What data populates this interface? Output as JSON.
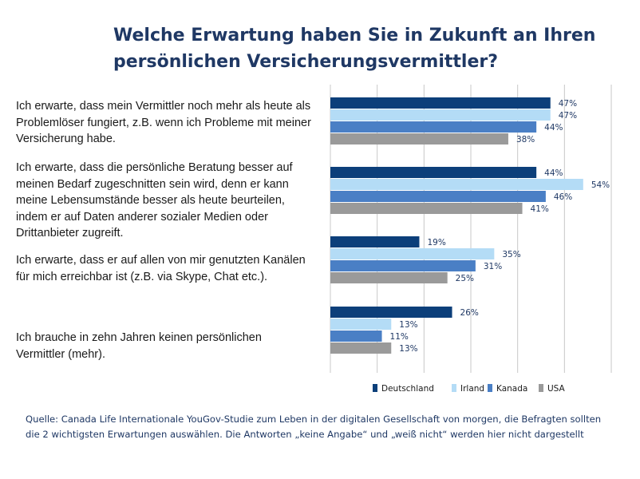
{
  "title_line1": "Welche Erwartung haben Sie in Zukunft an Ihren",
  "title_line2": "persönlichen Versicherungsvermittler?",
  "source": "Quelle: Canada Life Internationale YouGov-Studie zum Leben in der digitalen Gesellschaft von morgen, die Befragten sollten die 2 wichtigsten Erwartungen auswählen. Die Antworten „keine Angabe“ und „weiß nicht“ werden hier nicht dargestellt",
  "colors": {
    "Deutschland": "#0c3f7a",
    "Irland": "#b4dcf6",
    "Kanada": "#4a7fc5",
    "USA": "#9a9a9a",
    "grid": "#c8c8c8",
    "value_text": "#1f3864"
  },
  "chart_data": {
    "type": "bar",
    "orientation": "horizontal",
    "title": "Welche Erwartung haben Sie in Zukunft an Ihren persönlichen Versicherungsvermittler?",
    "value_suffix": "%",
    "xlim": [
      0,
      60
    ],
    "grid": true,
    "legend_position": "bottom",
    "categories": [
      "Ich erwarte, dass mein Vermittler noch mehr als heute als Problemlöser fungiert, z.B. wenn ich Probleme mit meiner Versicherung habe.",
      "Ich erwarte, dass die persönliche Beratung besser auf meinen Bedarf zugeschnitten sein wird, denn er kann meine Lebensumstände besser als heute beurteilen, indem er auf Daten anderer sozialer Medien oder Drittanbieter zugreift.",
      "Ich erwarte, dass er auf allen von mir genutzten Kanälen für mich erreichbar ist (z.B. via Skype, Chat etc.).",
      "Ich brauche in zehn Jahren keinen persönlichen Vermittler (mehr)."
    ],
    "series": [
      {
        "name": "Deutschland",
        "values": [
          47,
          44,
          19,
          26
        ]
      },
      {
        "name": "Irland",
        "values": [
          47,
          54,
          35,
          13
        ]
      },
      {
        "name": "Kanada",
        "values": [
          44,
          46,
          31,
          11
        ]
      },
      {
        "name": "USA",
        "values": [
          38,
          41,
          25,
          13
        ]
      }
    ]
  }
}
